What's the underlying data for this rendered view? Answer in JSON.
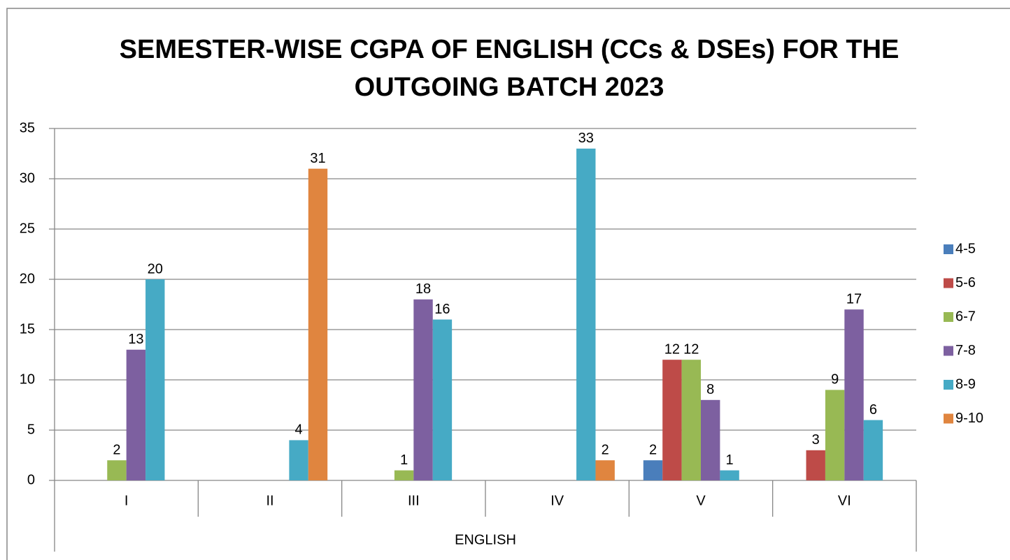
{
  "chart_data": {
    "type": "bar",
    "title": [
      "SEMESTER-WISE CGPA OF ENGLISH (CCs & DSEs) FOR THE",
      "OUTGOING BATCH 2023"
    ],
    "x_group_label": "ENGLISH",
    "categories": [
      "I",
      "II",
      "III",
      "IV",
      "V",
      "VI"
    ],
    "series": [
      {
        "name": "4-5",
        "color": "#4a7ebb",
        "values": [
          null,
          null,
          null,
          null,
          2,
          null
        ]
      },
      {
        "name": "5-6",
        "color": "#be4b48",
        "values": [
          null,
          null,
          null,
          null,
          12,
          3
        ]
      },
      {
        "name": "6-7",
        "color": "#98b954",
        "values": [
          2,
          null,
          1,
          null,
          12,
          9
        ]
      },
      {
        "name": "7-8",
        "color": "#7d60a0",
        "values": [
          13,
          null,
          18,
          null,
          8,
          17
        ]
      },
      {
        "name": "8-9",
        "color": "#46aac5",
        "values": [
          20,
          4,
          16,
          33,
          1,
          6
        ]
      },
      {
        "name": "9-10",
        "color": "#e0853f",
        "values": [
          null,
          31,
          null,
          2,
          null,
          null
        ]
      }
    ],
    "ylim": [
      0,
      35
    ],
    "yticks": [
      0,
      5,
      10,
      15,
      20,
      25,
      30,
      35
    ],
    "grid": true,
    "legend": "right"
  }
}
